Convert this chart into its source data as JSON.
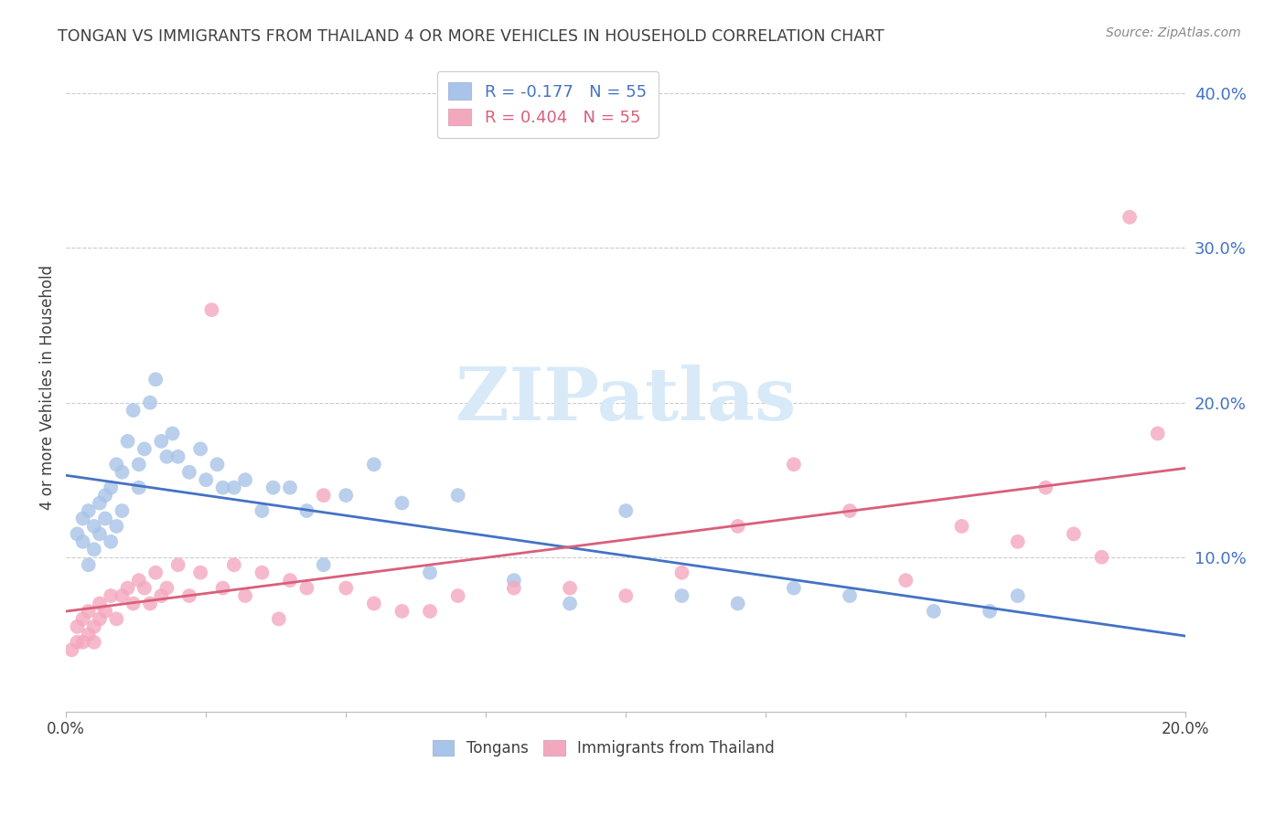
{
  "title": "TONGAN VS IMMIGRANTS FROM THAILAND 4 OR MORE VEHICLES IN HOUSEHOLD CORRELATION CHART",
  "source": "Source: ZipAtlas.com",
  "ylabel": "4 or more Vehicles in Household",
  "xlim": [
    0.0,
    0.2
  ],
  "ylim": [
    0.0,
    0.42
  ],
  "xtick_positions": [
    0.0,
    0.025,
    0.05,
    0.075,
    0.1,
    0.125,
    0.15,
    0.175,
    0.2
  ],
  "xtick_labels": [
    "0.0%",
    "",
    "",
    "",
    "",
    "",
    "",
    "",
    "20.0%"
  ],
  "yticks_right": [
    0.1,
    0.2,
    0.3,
    0.4
  ],
  "ytick_labels_right": [
    "10.0%",
    "20.0%",
    "30.0%",
    "40.0%"
  ],
  "tongan_R": -0.177,
  "tongan_N": 55,
  "thailand_R": 0.404,
  "thailand_N": 55,
  "tongan_color": "#a8c4e8",
  "thailand_color": "#f4a8be",
  "tongan_line_color": "#4472c4",
  "thailand_line_color": "#d95f7a",
  "watermark_text": "ZIPatlas",
  "watermark_color": "#d8eaf8",
  "background_color": "#ffffff",
  "grid_color": "#cccccc",
  "title_color": "#404040",
  "right_tick_color": "#4472c4",
  "tongan_scatter_x": [
    0.002,
    0.003,
    0.003,
    0.004,
    0.004,
    0.005,
    0.005,
    0.006,
    0.006,
    0.007,
    0.007,
    0.008,
    0.008,
    0.009,
    0.009,
    0.01,
    0.01,
    0.011,
    0.012,
    0.013,
    0.013,
    0.014,
    0.015,
    0.016,
    0.017,
    0.018,
    0.019,
    0.02,
    0.022,
    0.024,
    0.025,
    0.027,
    0.028,
    0.03,
    0.032,
    0.035,
    0.037,
    0.04,
    0.043,
    0.046,
    0.05,
    0.055,
    0.06,
    0.065,
    0.07,
    0.08,
    0.09,
    0.1,
    0.11,
    0.12,
    0.13,
    0.14,
    0.155,
    0.165,
    0.17
  ],
  "tongan_scatter_y": [
    0.115,
    0.125,
    0.11,
    0.13,
    0.095,
    0.12,
    0.105,
    0.135,
    0.115,
    0.14,
    0.125,
    0.145,
    0.11,
    0.16,
    0.12,
    0.155,
    0.13,
    0.175,
    0.195,
    0.145,
    0.16,
    0.17,
    0.2,
    0.215,
    0.175,
    0.165,
    0.18,
    0.165,
    0.155,
    0.17,
    0.15,
    0.16,
    0.145,
    0.145,
    0.15,
    0.13,
    0.145,
    0.145,
    0.13,
    0.095,
    0.14,
    0.16,
    0.135,
    0.09,
    0.14,
    0.085,
    0.07,
    0.13,
    0.075,
    0.07,
    0.08,
    0.075,
    0.065,
    0.065,
    0.075
  ],
  "thailand_scatter_x": [
    0.001,
    0.002,
    0.002,
    0.003,
    0.003,
    0.004,
    0.004,
    0.005,
    0.005,
    0.006,
    0.006,
    0.007,
    0.008,
    0.009,
    0.01,
    0.011,
    0.012,
    0.013,
    0.014,
    0.015,
    0.016,
    0.017,
    0.018,
    0.02,
    0.022,
    0.024,
    0.026,
    0.028,
    0.03,
    0.032,
    0.035,
    0.038,
    0.04,
    0.043,
    0.046,
    0.05,
    0.055,
    0.06,
    0.065,
    0.07,
    0.08,
    0.09,
    0.1,
    0.11,
    0.12,
    0.13,
    0.14,
    0.15,
    0.16,
    0.17,
    0.175,
    0.18,
    0.185,
    0.19,
    0.195
  ],
  "thailand_scatter_y": [
    0.04,
    0.045,
    0.055,
    0.045,
    0.06,
    0.05,
    0.065,
    0.055,
    0.045,
    0.06,
    0.07,
    0.065,
    0.075,
    0.06,
    0.075,
    0.08,
    0.07,
    0.085,
    0.08,
    0.07,
    0.09,
    0.075,
    0.08,
    0.095,
    0.075,
    0.09,
    0.26,
    0.08,
    0.095,
    0.075,
    0.09,
    0.06,
    0.085,
    0.08,
    0.14,
    0.08,
    0.07,
    0.065,
    0.065,
    0.075,
    0.08,
    0.08,
    0.075,
    0.09,
    0.12,
    0.16,
    0.13,
    0.085,
    0.12,
    0.11,
    0.145,
    0.115,
    0.1,
    0.32,
    0.18
  ]
}
